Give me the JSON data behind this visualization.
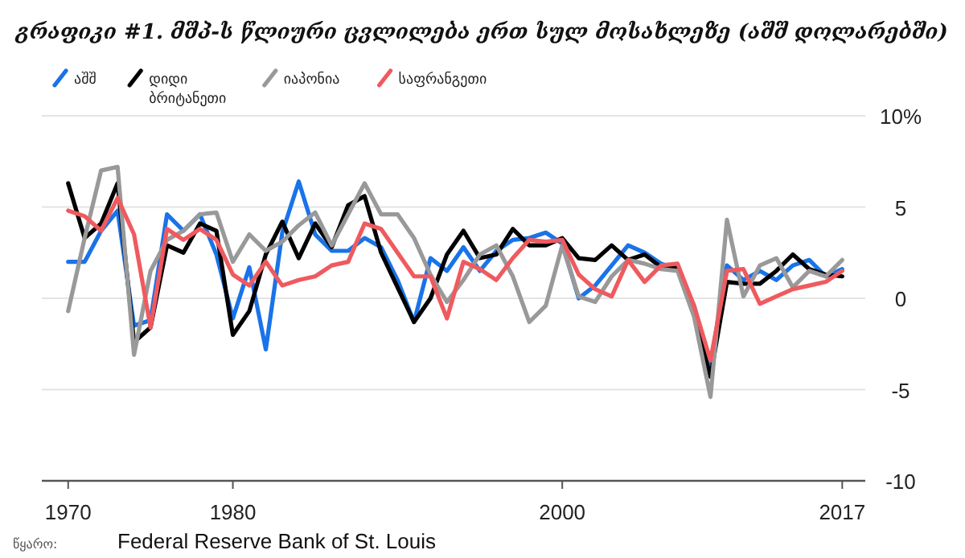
{
  "chart_data": {
    "type": "line",
    "title": "გრაფიკი #1. მშპ-ს წლიური ცვლილება ერთ სულ მოსახლეზე (აშშ დოლარებში)",
    "annotations": [
      "წყარო:",
      "Federal Reserve Bank of St. Louis"
    ],
    "x": [
      1970,
      1971,
      1972,
      1973,
      1974,
      1975,
      1976,
      1977,
      1978,
      1979,
      1980,
      1981,
      1982,
      1983,
      1984,
      1985,
      1986,
      1987,
      1988,
      1989,
      1990,
      1991,
      1992,
      1993,
      1994,
      1995,
      1996,
      1997,
      1998,
      1999,
      2000,
      2001,
      2002,
      2003,
      2004,
      2005,
      2006,
      2007,
      2008,
      2009,
      2010,
      2011,
      2012,
      2013,
      2014,
      2015,
      2016,
      2017
    ],
    "series": [
      {
        "name": "აშშ",
        "color": "#1a73e8",
        "values": [
          2.0,
          2.0,
          3.7,
          4.8,
          -1.5,
          -1.2,
          4.6,
          3.7,
          4.6,
          2.4,
          -1.1,
          1.7,
          -2.8,
          3.6,
          6.4,
          3.5,
          2.6,
          2.6,
          3.3,
          2.8,
          1.0,
          -1.3,
          2.2,
          1.5,
          2.8,
          1.5,
          2.6,
          3.2,
          3.3,
          3.6,
          3.0,
          0.0,
          0.7,
          1.8,
          2.9,
          2.5,
          1.9,
          1.6,
          -0.4,
          -3.7,
          1.8,
          1.0,
          1.5,
          1.0,
          1.8,
          2.1,
          1.2,
          1.6
        ]
      },
      {
        "name": "დიდი ბრიტანეთი",
        "color": "#000000",
        "values": [
          6.3,
          3.3,
          4.1,
          6.3,
          -2.4,
          -1.6,
          2.9,
          2.5,
          4.1,
          3.7,
          -2.0,
          -0.7,
          2.4,
          4.2,
          2.2,
          4.1,
          2.8,
          5.1,
          5.6,
          2.5,
          0.6,
          -1.3,
          0.0,
          2.4,
          3.7,
          2.2,
          2.4,
          3.8,
          2.9,
          2.9,
          3.3,
          2.2,
          2.1,
          2.9,
          2.1,
          2.4,
          1.7,
          1.7,
          -0.9,
          -4.3,
          0.9,
          0.8,
          0.8,
          1.5,
          2.4,
          1.6,
          1.3,
          1.2
        ]
      },
      {
        "name": "იაპონია",
        "color": "#999999",
        "values": [
          -0.7,
          3.3,
          7.0,
          7.2,
          -3.1,
          1.5,
          3.2,
          3.7,
          4.6,
          4.7,
          2.0,
          3.5,
          2.6,
          3.1,
          4.0,
          4.7,
          2.9,
          4.6,
          6.3,
          4.6,
          4.6,
          3.3,
          1.3,
          -0.2,
          1.0,
          2.4,
          2.9,
          1.2,
          -1.3,
          -0.4,
          2.9,
          0.1,
          -0.2,
          1.2,
          2.1,
          1.9,
          1.6,
          1.5,
          -1.0,
          -5.4,
          4.3,
          0.1,
          1.8,
          2.2,
          0.6,
          1.5,
          1.2,
          2.1
        ]
      },
      {
        "name": "საფრანგეთი",
        "color": "#ef5a5f",
        "values": [
          4.8,
          4.5,
          3.7,
          5.5,
          3.5,
          -1.6,
          3.8,
          3.2,
          3.8,
          3.2,
          1.3,
          0.7,
          2.0,
          0.7,
          1.0,
          1.2,
          1.8,
          2.0,
          4.1,
          3.8,
          2.5,
          1.2,
          1.2,
          -1.1,
          2.0,
          1.6,
          1.0,
          2.2,
          3.2,
          3.1,
          3.2,
          1.3,
          0.5,
          0.1,
          2.1,
          0.9,
          1.8,
          1.9,
          -0.4,
          -3.4,
          1.5,
          1.6,
          -0.3,
          0.1,
          0.5,
          0.7,
          0.9,
          1.5
        ]
      }
    ],
    "xlim": [
      1968.4,
      2018.4
    ],
    "xticks": [
      1970,
      1980,
      2000,
      2017
    ],
    "ylim": [
      -10,
      10
    ],
    "yticks": [
      {
        "value": 10,
        "label": "10%"
      },
      5,
      0,
      -5,
      -10
    ],
    "grid": "y",
    "legend": "top left",
    "line_style": "solid",
    "marker": "none"
  }
}
